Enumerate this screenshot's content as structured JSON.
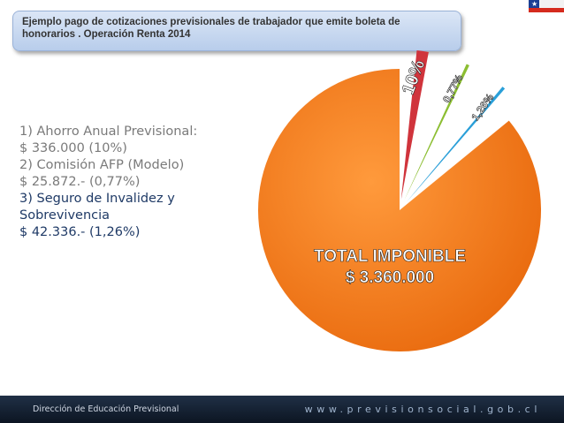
{
  "title": "Ejemplo pago de cotizaciones previsionales de trabajador  que emite boleta de honorarios . Operación Renta 2014",
  "info_lines": [
    "1) Ahorro Anual Previsional:",
    "$ 336.000 (10%)",
    "2) Comisión AFP (Modelo)",
    "$ 25.872.- (0,77%)",
    "3) Seguro de Invalidez y",
    "Sobrevivencia",
    "$ 42.336.- (1,26%)"
  ],
  "chart_data": {
    "type": "pie",
    "total_label": "TOTAL IMPONIBLE",
    "total_value": "$ 3.360.000",
    "slices": [
      {
        "label": "10%",
        "value": 10,
        "color": "#d0343c"
      },
      {
        "label": "0,77%",
        "value": 0.77,
        "color": "#8cbe32"
      },
      {
        "label": "1,26%",
        "value": 1.26,
        "color": "#2a9fd8"
      },
      {
        "label": "",
        "value": 100,
        "color": "#f27b1a"
      }
    ]
  },
  "footer": {
    "left": "Dirección de Educación Previsional",
    "right": "www.previsionsocial.gob.cl"
  },
  "colors": {
    "accent_blue": "#1c3f94",
    "accent_red": "#d52b1e",
    "pie_main": "#f27b1a"
  }
}
